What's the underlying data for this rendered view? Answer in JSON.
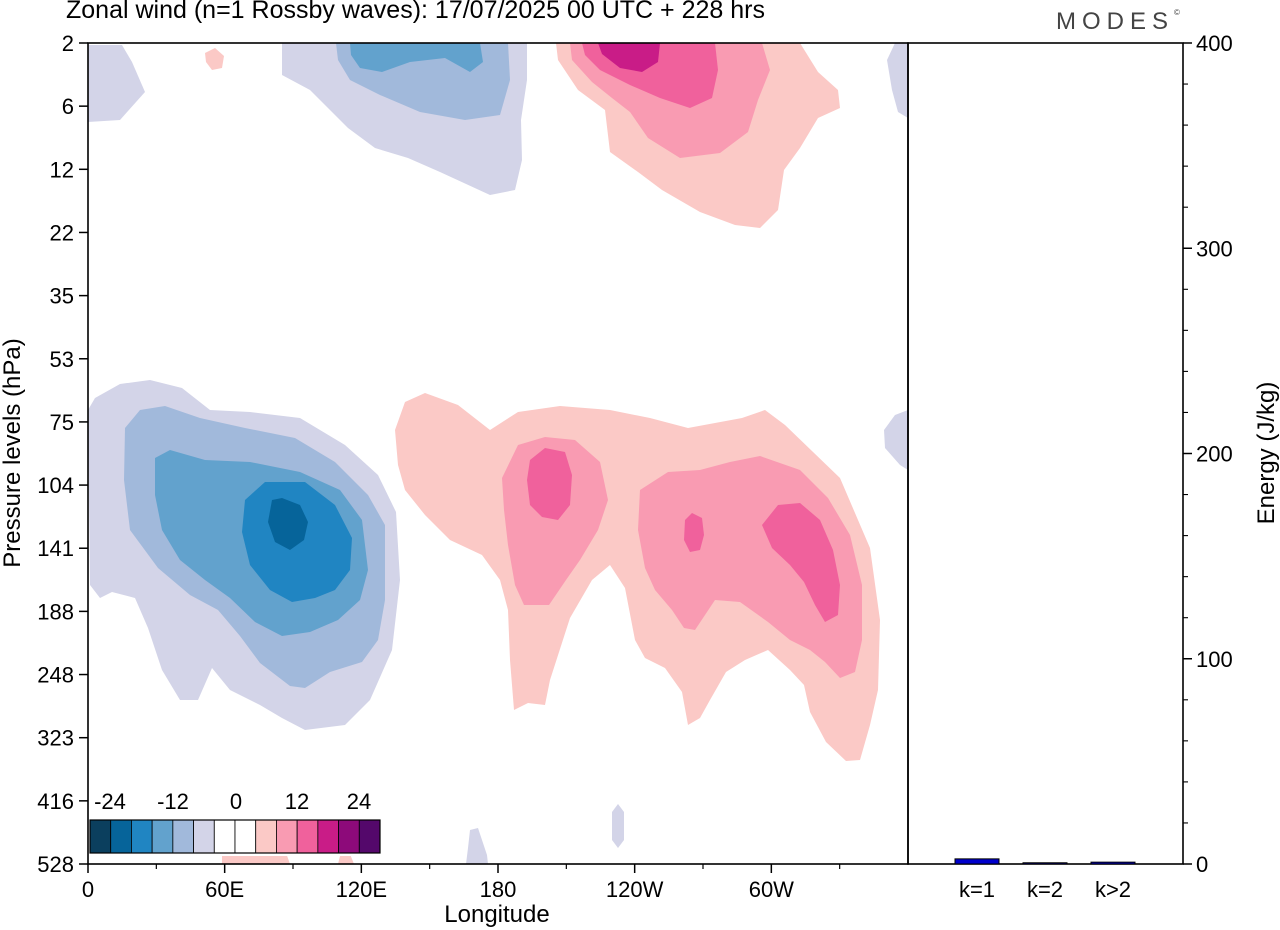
{
  "chart_data": [
    {
      "type": "heatmap",
      "title": "Zonal wind (n=1 Rossby waves):  17/07/2025  00 UTC  + 228 hrs",
      "logo": "MODES",
      "xlabel": "Longitude",
      "ylabel": "Pressure levels (hPa)",
      "x_ticks": [
        "0",
        "60E",
        "120E",
        "180",
        "120W",
        "60W"
      ],
      "y_ticks": [
        "2",
        "6",
        "12",
        "22",
        "35",
        "53",
        "75",
        "104",
        "141",
        "188",
        "248",
        "323",
        "416",
        "528"
      ],
      "colorbar": {
        "labels": [
          "-24",
          "-12",
          "0",
          "12",
          "24"
        ],
        "colors": [
          "#0b3f5e",
          "#06649a",
          "#2085c2",
          "#62a2cd",
          "#a1b9db",
          "#d3d4e8",
          "#ffffff",
          "#ffffff",
          "#fbc9c6",
          "#f99bb2",
          "#f0619c",
          "#c91c87",
          "#8d0a7a",
          "#54086b"
        ]
      },
      "colors": {
        "neg_1": "#d3d4e8",
        "neg_2": "#a1b9db",
        "neg_3": "#62a2cd",
        "neg_4": "#2085c2",
        "neg_5": "#06649a",
        "pos_1": "#fbc9c6",
        "pos_2": "#f99bb2",
        "pos_3": "#f0619c",
        "pos_4": "#c91c87"
      }
    },
    {
      "type": "bar",
      "categories": [
        "k=1",
        "k=2",
        "k>2"
      ],
      "values": [
        2.5,
        0.6,
        0.9
      ],
      "ylabel": "Energy (J/kg)",
      "ylim": [
        0,
        400
      ],
      "y_ticks": [
        "0",
        "100",
        "200",
        "300",
        "400"
      ],
      "colors": {
        "fill": "#0000cc"
      }
    }
  ]
}
